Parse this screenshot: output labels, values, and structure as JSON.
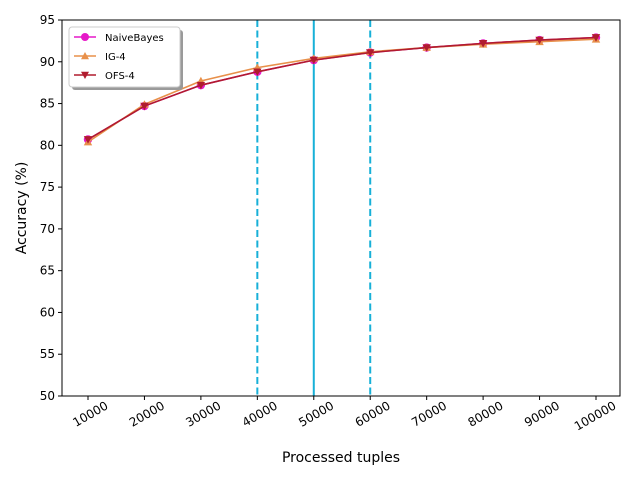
{
  "chart_data": {
    "type": "line",
    "title": "",
    "xlabel": "Processed tuples",
    "ylabel": "Accuracy (%)",
    "x": [
      10000,
      20000,
      30000,
      40000,
      50000,
      60000,
      70000,
      80000,
      90000,
      100000
    ],
    "x_tick_labels": [
      "10000",
      "20000",
      "30000",
      "40000",
      "50000",
      "60000",
      "70000",
      "80000",
      "90000",
      "100000"
    ],
    "ylim": [
      50,
      95
    ],
    "y_ticks": [
      50,
      55,
      60,
      65,
      70,
      75,
      80,
      85,
      90,
      95
    ],
    "grid": false,
    "legend_position": "top-left",
    "series": [
      {
        "name": "NaiveBayes",
        "color": "#e619c8",
        "marker": "circle",
        "values": [
          80.7,
          84.7,
          87.2,
          88.8,
          90.2,
          91.1,
          91.7,
          92.2,
          92.6,
          92.9
        ]
      },
      {
        "name": "IG-4",
        "color": "#e8904a",
        "marker": "triangle-up",
        "values": [
          80.4,
          84.9,
          87.7,
          89.3,
          90.4,
          91.2,
          91.7,
          92.1,
          92.4,
          92.7
        ]
      },
      {
        "name": "OFS-4",
        "color": "#b01c2e",
        "marker": "triangle-down",
        "values": [
          80.7,
          84.7,
          87.2,
          88.8,
          90.2,
          91.1,
          91.7,
          92.2,
          92.6,
          92.9
        ]
      }
    ],
    "vertical_lines": [
      {
        "x": 40000,
        "style": "dashed",
        "color": "#17b0d8"
      },
      {
        "x": 50000,
        "style": "solid",
        "color": "#17b0d8"
      },
      {
        "x": 60000,
        "style": "dashed",
        "color": "#17b0d8"
      }
    ]
  }
}
